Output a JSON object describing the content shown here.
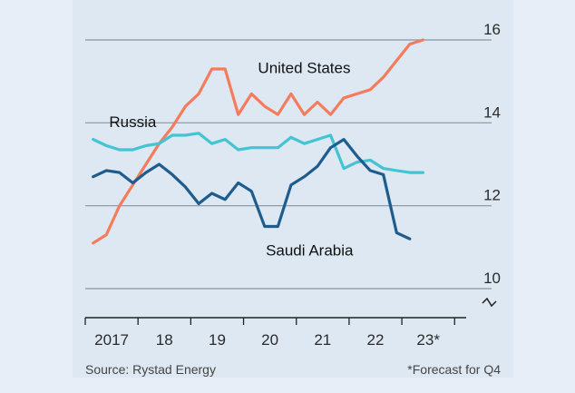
{
  "chart_data": {
    "type": "line",
    "title": "",
    "xlabel": "",
    "ylabel": "",
    "x_ticks": [
      "2017",
      "18",
      "19",
      "20",
      "21",
      "22",
      "23*"
    ],
    "y_ticks": [
      10,
      12,
      14,
      16
    ],
    "ylim": [
      9.6,
      16.4
    ],
    "xlim": [
      2016.85,
      2024.0
    ],
    "grid": true,
    "broken_axis": true,
    "series": [
      {
        "name": "United States",
        "color": "#f47c5d",
        "points": [
          [
            2017.0,
            11.1
          ],
          [
            2017.25,
            11.3
          ],
          [
            2017.5,
            12.0
          ],
          [
            2017.75,
            12.5
          ],
          [
            2018.0,
            13.0
          ],
          [
            2018.25,
            13.5
          ],
          [
            2018.5,
            13.9
          ],
          [
            2018.75,
            14.4
          ],
          [
            2019.0,
            14.7
          ],
          [
            2019.25,
            15.3
          ],
          [
            2019.5,
            15.3
          ],
          [
            2019.75,
            14.2
          ],
          [
            2020.0,
            14.7
          ],
          [
            2020.25,
            14.4
          ],
          [
            2020.5,
            14.2
          ],
          [
            2020.75,
            14.7
          ],
          [
            2021.0,
            14.2
          ],
          [
            2021.25,
            14.5
          ],
          [
            2021.5,
            14.2
          ],
          [
            2021.75,
            14.6
          ],
          [
            2022.0,
            14.7
          ],
          [
            2022.25,
            14.8
          ],
          [
            2022.5,
            15.1
          ],
          [
            2022.75,
            15.5
          ],
          [
            2023.0,
            15.9
          ],
          [
            2023.25,
            16.0
          ]
        ]
      },
      {
        "name": "Russia",
        "color": "#44c3d2",
        "points": [
          [
            2017.0,
            13.6
          ],
          [
            2017.25,
            13.45
          ],
          [
            2017.5,
            13.35
          ],
          [
            2017.75,
            13.35
          ],
          [
            2018.0,
            13.45
          ],
          [
            2018.25,
            13.5
          ],
          [
            2018.5,
            13.7
          ],
          [
            2018.75,
            13.7
          ],
          [
            2019.0,
            13.75
          ],
          [
            2019.25,
            13.5
          ],
          [
            2019.5,
            13.6
          ],
          [
            2019.75,
            13.35
          ],
          [
            2020.0,
            13.4
          ],
          [
            2020.25,
            13.4
          ],
          [
            2020.5,
            13.4
          ],
          [
            2020.75,
            13.65
          ],
          [
            2021.0,
            13.5
          ],
          [
            2021.25,
            13.6
          ],
          [
            2021.5,
            13.7
          ],
          [
            2021.75,
            12.9
          ],
          [
            2022.0,
            13.05
          ],
          [
            2022.25,
            13.1
          ],
          [
            2022.5,
            12.9
          ],
          [
            2022.75,
            12.85
          ],
          [
            2023.0,
            12.8
          ],
          [
            2023.25,
            12.8
          ]
        ]
      },
      {
        "name": "Saudi Arabia",
        "color": "#1f5c8e",
        "points": [
          [
            2017.0,
            12.7
          ],
          [
            2017.25,
            12.85
          ],
          [
            2017.5,
            12.8
          ],
          [
            2017.75,
            12.55
          ],
          [
            2018.0,
            12.8
          ],
          [
            2018.25,
            13.0
          ],
          [
            2018.5,
            12.75
          ],
          [
            2018.75,
            12.45
          ],
          [
            2019.0,
            12.05
          ],
          [
            2019.25,
            12.3
          ],
          [
            2019.5,
            12.15
          ],
          [
            2019.75,
            12.55
          ],
          [
            2020.0,
            12.35
          ],
          [
            2020.25,
            11.5
          ],
          [
            2020.5,
            11.5
          ],
          [
            2020.75,
            12.5
          ],
          [
            2021.0,
            12.7
          ],
          [
            2021.25,
            12.95
          ],
          [
            2021.5,
            13.4
          ],
          [
            2021.75,
            13.6
          ],
          [
            2022.0,
            13.2
          ],
          [
            2022.25,
            12.85
          ],
          [
            2022.5,
            12.75
          ],
          [
            2022.75,
            11.35
          ],
          [
            2023.0,
            11.2
          ]
        ]
      }
    ],
    "annotations": [
      {
        "text": "United States",
        "x": 2021.0,
        "y": 15.2
      },
      {
        "text": "Russia",
        "x": 2017.75,
        "y": 13.9
      },
      {
        "text": "Saudi Arabia",
        "x": 2021.1,
        "y": 10.8
      }
    ],
    "source": "Source: Rystad Energy",
    "footnote": "*Forecast for Q4"
  }
}
